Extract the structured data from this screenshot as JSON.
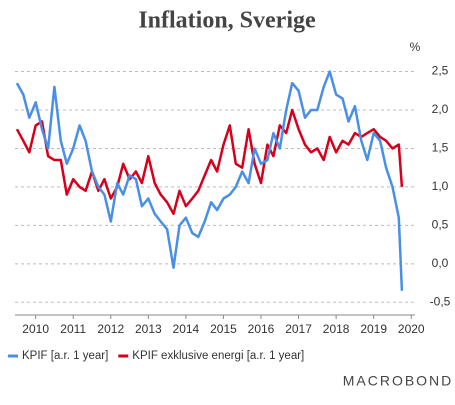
{
  "chart_data": {
    "type": "line",
    "title": "Inflation, Sverige",
    "y_unit": "%",
    "x": [
      2010,
      2010.17,
      2010.33,
      2010.5,
      2010.67,
      2010.83,
      2011,
      2011.17,
      2011.33,
      2011.5,
      2011.67,
      2011.83,
      2012,
      2012.17,
      2012.33,
      2012.5,
      2012.67,
      2012.83,
      2013,
      2013.17,
      2013.33,
      2013.5,
      2013.67,
      2013.83,
      2014,
      2014.17,
      2014.33,
      2014.5,
      2014.67,
      2014.83,
      2015,
      2015.17,
      2015.33,
      2015.5,
      2015.67,
      2015.83,
      2016,
      2016.17,
      2016.33,
      2016.5,
      2016.67,
      2016.83,
      2017,
      2017.17,
      2017.33,
      2017.5,
      2017.67,
      2017.83,
      2018,
      2018.17,
      2018.33,
      2018.5,
      2018.67,
      2018.83,
      2019,
      2019.17,
      2019.33,
      2019.5,
      2019.67,
      2019.83,
      2020,
      2020.17,
      2020.25
    ],
    "series": [
      {
        "name": "KPIF [a.r. 1 year]",
        "color": "#4a8fe7",
        "values": [
          2.35,
          2.2,
          1.9,
          2.1,
          1.75,
          1.5,
          2.3,
          1.6,
          1.3,
          1.5,
          1.8,
          1.6,
          1.2,
          1.0,
          0.9,
          0.55,
          1.05,
          0.9,
          1.15,
          1.1,
          0.75,
          0.85,
          0.65,
          0.55,
          0.45,
          -0.05,
          0.5,
          0.6,
          0.4,
          0.35,
          0.55,
          0.8,
          0.7,
          0.85,
          0.9,
          1.0,
          1.2,
          1.05,
          1.5,
          1.3,
          1.35,
          1.7,
          1.5,
          2.0,
          2.35,
          2.25,
          1.9,
          2.0,
          2.0,
          2.3,
          2.5,
          2.2,
          2.15,
          1.85,
          2.05,
          1.6,
          1.35,
          1.7,
          1.6,
          1.25,
          1.0,
          0.6,
          -0.35
        ]
      },
      {
        "name": "KPIF exklusive energi [a.r. 1 year]",
        "color": "#d6001c",
        "values": [
          1.75,
          1.6,
          1.45,
          1.8,
          1.85,
          1.4,
          1.35,
          1.35,
          0.9,
          1.1,
          1.0,
          0.95,
          1.2,
          0.95,
          1.1,
          0.85,
          1.0,
          1.3,
          1.1,
          1.2,
          1.05,
          1.4,
          1.05,
          0.9,
          0.8,
          0.65,
          0.95,
          0.75,
          0.85,
          0.95,
          1.15,
          1.35,
          1.2,
          1.55,
          1.8,
          1.3,
          1.25,
          1.75,
          1.3,
          1.05,
          1.55,
          1.4,
          1.8,
          1.7,
          2.0,
          1.75,
          1.55,
          1.45,
          1.5,
          1.35,
          1.65,
          1.45,
          1.6,
          1.55,
          1.7,
          1.65,
          1.7,
          1.75,
          1.65,
          1.6,
          1.5,
          1.55,
          1.0
        ]
      }
    ],
    "xlim": [
      2009.95,
      2020.6
    ],
    "xticks": [
      {
        "value": 2010.5,
        "label": "2010"
      },
      {
        "value": 2011.5,
        "label": "2011"
      },
      {
        "value": 2012.5,
        "label": "2012"
      },
      {
        "value": 2013.5,
        "label": "2013"
      },
      {
        "value": 2014.5,
        "label": "2014"
      },
      {
        "value": 2015.5,
        "label": "2015"
      },
      {
        "value": 2016.5,
        "label": "2016"
      },
      {
        "value": 2017.5,
        "label": "2017"
      },
      {
        "value": 2018.5,
        "label": "2018"
      },
      {
        "value": 2019.5,
        "label": "2019"
      },
      {
        "value": 2020.5,
        "label": "2020"
      }
    ],
    "ylim": [
      -0.6,
      2.65
    ],
    "yticks": [
      {
        "value": 2.5,
        "label": "2,5"
      },
      {
        "value": 2.0,
        "label": "2,0"
      },
      {
        "value": 1.5,
        "label": "1,5"
      },
      {
        "value": 1.0,
        "label": "1,0"
      },
      {
        "value": 0.5,
        "label": "0,5"
      },
      {
        "value": 0.0,
        "label": "0,0"
      },
      {
        "value": -0.5,
        "label": "-0,5"
      }
    ],
    "grid": true,
    "y_axis_side": "right",
    "legend_position": "bottom",
    "source": "MACROBOND"
  }
}
